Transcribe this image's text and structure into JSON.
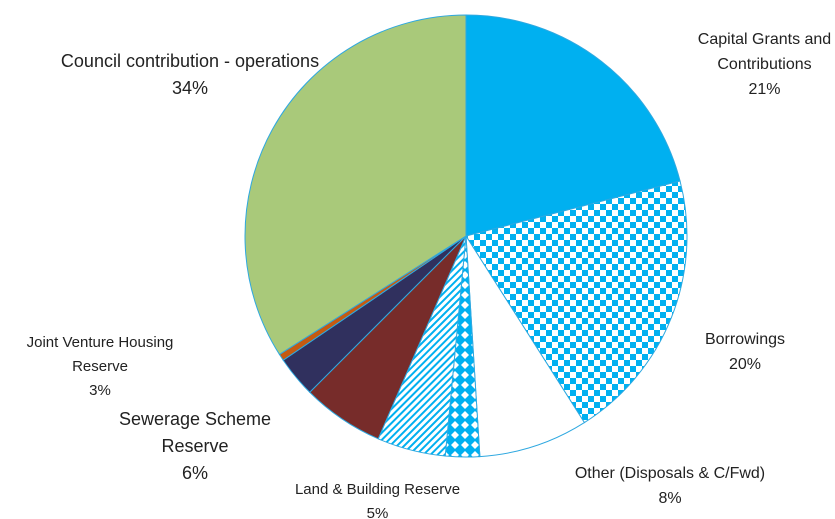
{
  "chart_data": {
    "type": "pie",
    "categories": [
      "Capital Grants and Contributions",
      "Borrowings",
      "Other (Disposals & C/Fwd)",
      null,
      "Land & Building Reserve",
      "Sewerage Scheme Reserve",
      "Joint Venture Housing Reserve",
      null,
      "Council contribution - operations"
    ],
    "values": [
      21,
      20,
      8,
      2.5,
      5,
      6,
      3,
      0.5,
      34
    ],
    "value_labels": [
      "21%",
      "20%",
      "8%",
      null,
      "5%",
      "6%",
      "3%",
      null,
      "34%"
    ],
    "colors": [
      "#00b0f0",
      "#00b0f0",
      "#ffffff",
      "#00b0f0",
      "#00b0f0",
      "#772c2a",
      "#30305e",
      "#c55a11",
      "#a9c97a"
    ],
    "fills": [
      "solid",
      "checker",
      "solid",
      "diamond",
      "hatch",
      "solid",
      "solid",
      "solid",
      "solid"
    ]
  }
}
